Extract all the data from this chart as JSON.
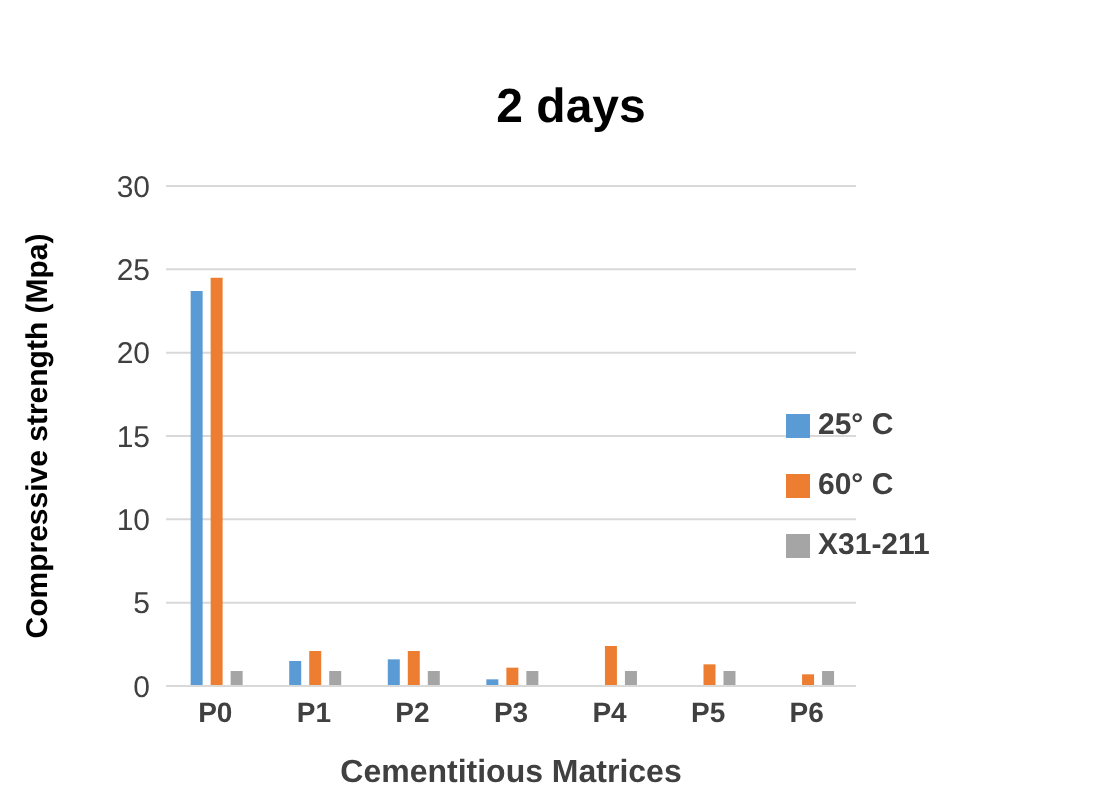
{
  "chart_data": {
    "type": "bar",
    "title": "2 days",
    "xlabel": "Cementitious Matrices",
    "ylabel": "Compressive strength (Mpa)",
    "categories": [
      "P0",
      "P1",
      "P2",
      "P3",
      "P4",
      "P5",
      "P6"
    ],
    "series": [
      {
        "name": "25° C",
        "color": "#5b9bd5",
        "values": [
          23.7,
          1.5,
          1.6,
          0.4,
          null,
          null,
          null
        ]
      },
      {
        "name": "60° C",
        "color": "#ed7d31",
        "values": [
          24.5,
          2.1,
          2.1,
          1.1,
          2.4,
          1.3,
          0.7
        ]
      },
      {
        "name": "X31-211",
        "color": "#a5a5a5",
        "values": [
          0.9,
          0.9,
          0.9,
          0.9,
          0.9,
          0.9,
          0.9
        ]
      }
    ],
    "ylim": [
      0,
      30
    ],
    "yticks": [
      0,
      5,
      10,
      15,
      20,
      25,
      30
    ],
    "grid": "y",
    "legend": "right"
  }
}
